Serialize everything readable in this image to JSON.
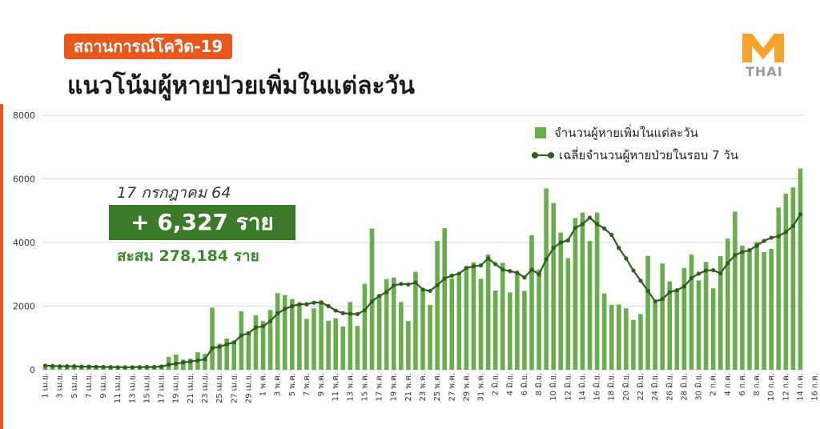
{
  "header": {
    "tag": "สถานการณ์โควิด-19",
    "headline": "แนวโน้มผู้หายป่วยเพิ่มในแต่ละวัน"
  },
  "logo": {
    "text": "THAI",
    "icon": "m-thai-logo-icon",
    "color": "#f7a22b"
  },
  "callout": {
    "date": "17 กรกฎาคม 64",
    "new_cases": "+ 6,327 ราย",
    "cumulative": "สะสม 278,184 ราย"
  },
  "colors": {
    "accent": "#e8571c",
    "bar": "#6aad4e",
    "line": "#2f5e1f",
    "callout_bg": "#3a7a2a"
  },
  "chart_data": {
    "type": "bar",
    "ylim": [
      0,
      8000
    ],
    "yticks": [
      "0",
      "2000",
      "4000",
      "6000",
      "8000"
    ],
    "grid": true,
    "legend_position": "top-right",
    "series": [
      {
        "name": "จำนวนผู้หายเพิ่มในแต่ละวัน",
        "type": "bar",
        "values": [
          150,
          110,
          100,
          110,
          120,
          100,
          90,
          80,
          80,
          70,
          70,
          80,
          90,
          100,
          90,
          110,
          150,
          400,
          480,
          320,
          350,
          550,
          500,
          1950,
          820,
          980,
          900,
          1840,
          1200,
          1710,
          1530,
          1880,
          2410,
          2350,
          2220,
          2030,
          1600,
          1930,
          2100,
          1540,
          1620,
          1360,
          2130,
          1380,
          2700,
          4440,
          2360,
          2850,
          2900,
          2130,
          1530,
          3080,
          2560,
          2040,
          4050,
          4450,
          2880,
          2960,
          3260,
          3380,
          2860,
          3620,
          2490,
          3360,
          2430,
          3010,
          2480,
          4230,
          3150,
          5700,
          5240,
          4310,
          3510,
          4770,
          4940,
          4050,
          4940,
          2400,
          2040,
          2050,
          1930,
          1570,
          1750,
          3580,
          2120,
          3340,
          2780,
          2520,
          3200,
          3620,
          2810,
          3390,
          2560,
          3570,
          4120,
          4970,
          3900,
          3780,
          4020,
          3700,
          3800,
          5100,
          5530,
          5730,
          6327
        ]
      },
      {
        "name": "เฉลี่ยจำนวนผู้หายป่วยในรอบ 7 วัน",
        "type": "line",
        "values": [
          130,
          120,
          110,
          110,
          110,
          100,
          100,
          95,
          90,
          85,
          80,
          80,
          80,
          85,
          85,
          90,
          100,
          160,
          190,
          230,
          260,
          290,
          330,
          680,
          720,
          800,
          860,
          1080,
          1150,
          1330,
          1370,
          1530,
          1770,
          1910,
          2000,
          2060,
          2060,
          2110,
          2120,
          2000,
          1860,
          1780,
          1760,
          1750,
          1870,
          2150,
          2320,
          2440,
          2650,
          2700,
          2680,
          2740,
          2520,
          2480,
          2660,
          2870,
          2960,
          3020,
          3200,
          3250,
          3280,
          3500,
          3320,
          3150,
          3100,
          3050,
          2900,
          3150,
          3000,
          3470,
          3830,
          4000,
          4070,
          4460,
          4580,
          4780,
          4580,
          4440,
          4240,
          3830,
          3500,
          3120,
          2800,
          2480,
          2150,
          2220,
          2440,
          2500,
          2620,
          2880,
          3020,
          3120,
          3130,
          3030,
          3350,
          3600,
          3700,
          3760,
          3900,
          4050,
          4150,
          4200,
          4330,
          4520,
          4890
        ]
      }
    ],
    "xticks": [
      "1 เม.ย.",
      "3 เม.ย.",
      "5 เม.ย.",
      "7 เม.ย.",
      "9 เม.ย.",
      "11 เม.ย.",
      "13 เม.ย.",
      "15 เม.ย.",
      "17 เม.ย.",
      "19 เม.ย.",
      "21 เม.ย.",
      "23 เม.ย.",
      "25 เม.ย.",
      "27 เม.ย.",
      "29 เม.ย.",
      "1 พ.ค.",
      "3 พ.ค.",
      "5 พ.ค.",
      "7 พ.ค.",
      "9 พ.ค.",
      "11 พ.ค.",
      "13 พ.ค.",
      "15 พ.ค.",
      "17 พ.ค.",
      "19 พ.ค.",
      "21 พ.ค.",
      "23 พ.ค.",
      "25 พ.ค.",
      "27 พ.ค.",
      "29 พ.ค.",
      "31 พ.ค.",
      "2 มิ.ย.",
      "4 มิ.ย.",
      "6 มิ.ย.",
      "8 มิ.ย.",
      "10 มิ.ย.",
      "12 มิ.ย.",
      "14 มิ.ย.",
      "16 มิ.ย.",
      "18 มิ.ย.",
      "20 มิ.ย.",
      "22 มิ.ย.",
      "24 มิ.ย.",
      "26 มิ.ย.",
      "28 มิ.ย.",
      "30 มิ.ย.",
      "2 ก.ค.",
      "4 ก.ค.",
      "6 ก.ค.",
      "8 ก.ค.",
      "10 ก.ค.",
      "12 ก.ค.",
      "14 ก.ค.",
      "16 ก.ค."
    ]
  }
}
